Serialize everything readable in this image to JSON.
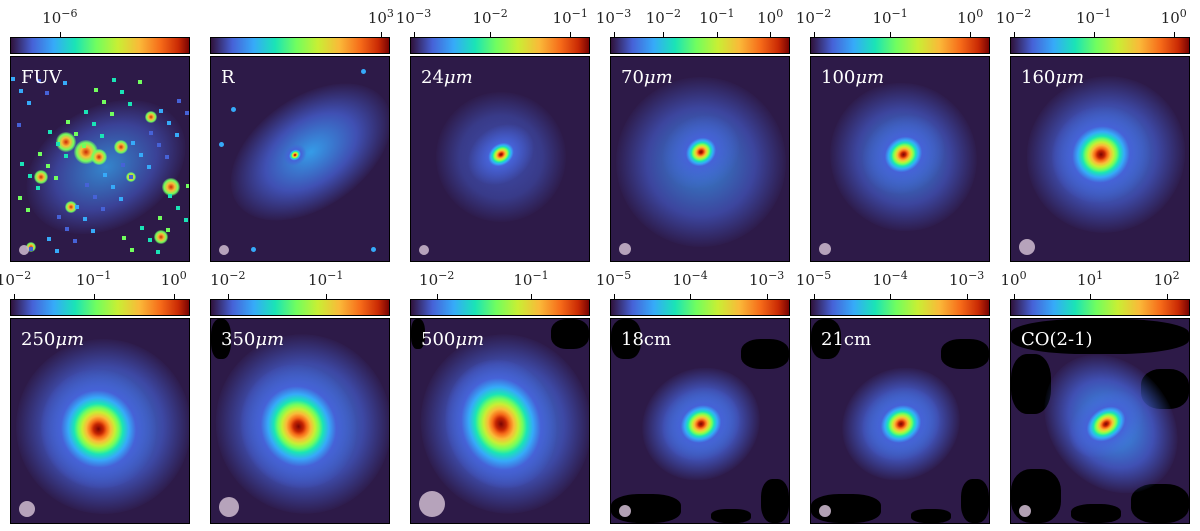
{
  "panels": [
    {
      "id": "fuv",
      "band": "FUV",
      "ticks": [
        {
          "base": "10",
          "exp": "−6",
          "pos": 0.28
        }
      ],
      "morph": "fuv",
      "beam": 0
    },
    {
      "id": "r",
      "band": "R",
      "ticks": [
        {
          "base": "10",
          "exp": "3",
          "pos": 0.96
        }
      ],
      "morph": "r",
      "beam": 0
    },
    {
      "id": "24um",
      "band": "24",
      "unit": "μm",
      "ticks": [
        {
          "base": "10",
          "exp": "−3",
          "pos": 0.02
        },
        {
          "base": "10",
          "exp": "−2",
          "pos": 0.45
        },
        {
          "base": "10",
          "exp": "−1",
          "pos": 0.9
        }
      ],
      "morph": "24",
      "beam": 0
    },
    {
      "id": "70um",
      "band": "70",
      "unit": "μm",
      "ticks": [
        {
          "base": "10",
          "exp": "−3",
          "pos": 0.02
        },
        {
          "base": "10",
          "exp": "−2",
          "pos": 0.3
        },
        {
          "base": "10",
          "exp": "−1",
          "pos": 0.6
        },
        {
          "base": "10",
          "exp": "0",
          "pos": 0.9
        }
      ],
      "morph": "70",
      "beam": 1
    },
    {
      "id": "100um",
      "band": "100",
      "unit": "μm",
      "ticks": [
        {
          "base": "10",
          "exp": "−2",
          "pos": 0.02
        },
        {
          "base": "10",
          "exp": "−1",
          "pos": 0.45
        },
        {
          "base": "10",
          "exp": "0",
          "pos": 0.9
        }
      ],
      "morph": "100",
      "beam": 1
    },
    {
      "id": "160um",
      "band": "160",
      "unit": "μm",
      "ticks": [
        {
          "base": "10",
          "exp": "−2",
          "pos": 0.02
        },
        {
          "base": "10",
          "exp": "−1",
          "pos": 0.47
        },
        {
          "base": "10",
          "exp": "0",
          "pos": 0.92
        }
      ],
      "morph": "160",
      "beam": 2
    },
    {
      "id": "250um",
      "band": "250",
      "unit": "μm",
      "ticks": [
        {
          "base": "10",
          "exp": "−2",
          "pos": 0.02
        },
        {
          "base": "10",
          "exp": "−1",
          "pos": 0.47
        },
        {
          "base": "10",
          "exp": "0",
          "pos": 0.92
        }
      ],
      "morph": "250",
      "beam": 2
    },
    {
      "id": "350um",
      "band": "350",
      "unit": "μm",
      "ticks": [
        {
          "base": "10",
          "exp": "−2",
          "pos": 0.1
        },
        {
          "base": "10",
          "exp": "−1",
          "pos": 0.65
        }
      ],
      "morph": "350",
      "beam": 3
    },
    {
      "id": "500um",
      "band": "500",
      "unit": "μm",
      "ticks": [
        {
          "base": "10",
          "exp": "−2",
          "pos": 0.15
        },
        {
          "base": "10",
          "exp": "−1",
          "pos": 0.68
        }
      ],
      "morph": "500",
      "beam": 4
    },
    {
      "id": "18cm",
      "band": "18cm",
      "ticks": [
        {
          "base": "10",
          "exp": "−5",
          "pos": 0.02
        },
        {
          "base": "10",
          "exp": "−4",
          "pos": 0.45
        },
        {
          "base": "10",
          "exp": "−3",
          "pos": 0.88
        }
      ],
      "morph": "18cm",
      "beam": 1
    },
    {
      "id": "21cm",
      "band": "21cm",
      "ticks": [
        {
          "base": "10",
          "exp": "−5",
          "pos": 0.02
        },
        {
          "base": "10",
          "exp": "−4",
          "pos": 0.45
        },
        {
          "base": "10",
          "exp": "−3",
          "pos": 0.88
        }
      ],
      "morph": "21cm",
      "beam": 1
    },
    {
      "id": "co21",
      "band": "CO(2-1)",
      "ticks": [
        {
          "base": "10",
          "exp": "0",
          "pos": 0.02
        },
        {
          "base": "10",
          "exp": "1",
          "pos": 0.45
        },
        {
          "base": "10",
          "exp": "2",
          "pos": 0.88
        }
      ],
      "morph": "co",
      "beam": 1
    }
  ],
  "colormap": {
    "low": "#30123b",
    "mid": "#72fe5e",
    "high": "#7a0403",
    "background": "#2d1a48",
    "masked": "#000000",
    "beam_color": "#c5b3c8"
  }
}
